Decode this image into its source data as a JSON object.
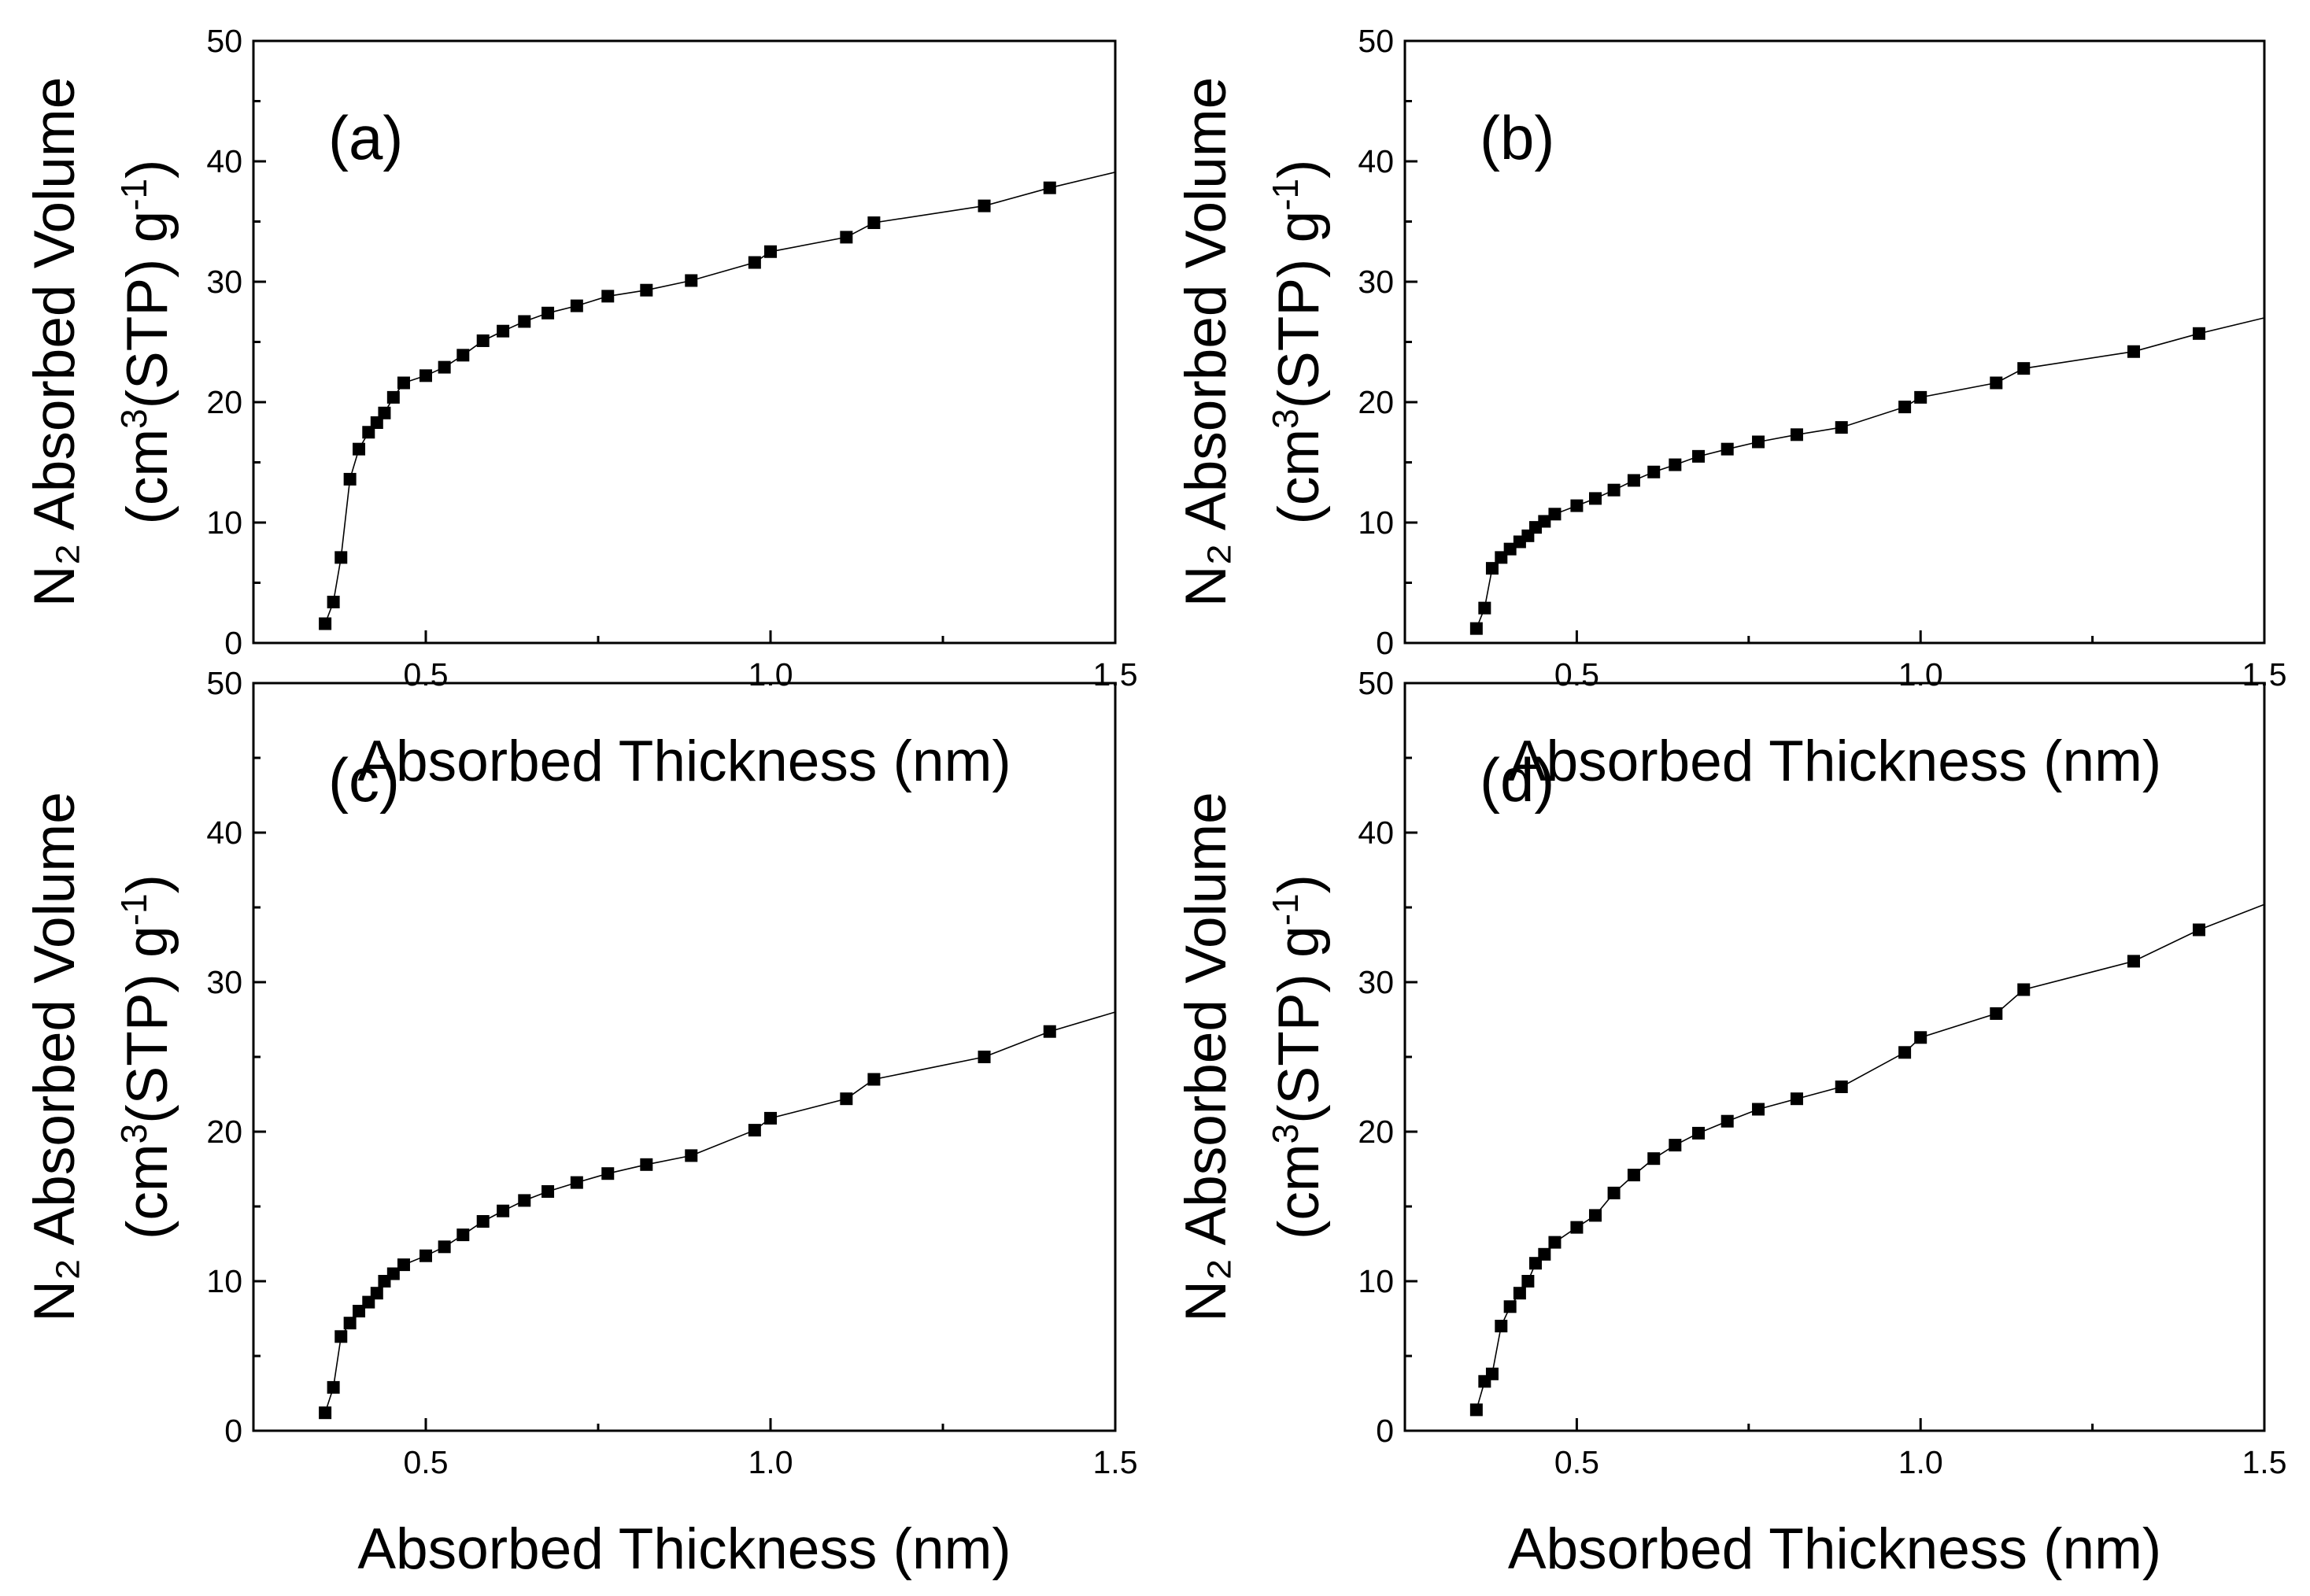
{
  "figure": {
    "x_axis_title": "Absorbed Thickness (nm)",
    "y_axis_title_line1": "N₂ Absorbed Volume",
    "y_axis_title_line2_prefix": "(cm",
    "y_axis_title_line2_sup1": "3",
    "y_axis_title_line2_middle": "(STP) g",
    "y_axis_title_line2_sup2": "-1",
    "y_axis_title_line2_suffix": ")"
  },
  "chart_data": [
    {
      "type": "line",
      "panel_label": "(a)",
      "title": "",
      "xlabel": "Absorbed Thickness (nm)",
      "ylabel": "N2 Absorbed Volume (cm3(STP) g-1)",
      "xlim": [
        0.25,
        1.5
      ],
      "ylim": [
        0,
        50
      ],
      "x_ticks": [
        0.5,
        1.0,
        1.5
      ],
      "x_tick_labels": [
        "0.5",
        "1.0",
        "1.5"
      ],
      "y_ticks": [
        0,
        10,
        20,
        30,
        40,
        50
      ],
      "y_tick_labels": [
        "0",
        "10",
        "20",
        "30",
        "40",
        "50"
      ],
      "grid": false,
      "marker": "square",
      "series": [
        {
          "name": "(a)",
          "x": [
            0.354,
            0.366,
            0.377,
            0.39,
            0.403,
            0.417,
            0.429,
            0.44,
            0.453,
            0.468,
            0.5,
            0.527,
            0.554,
            0.583,
            0.612,
            0.643,
            0.677,
            0.719,
            0.764,
            0.82,
            0.885,
            0.977,
            1.0,
            1.11,
            1.15,
            1.31,
            1.405,
            1.5
          ],
          "y": [
            1.6,
            3.4,
            7.1,
            13.6,
            16.1,
            17.5,
            18.3,
            19.1,
            20.4,
            21.6,
            22.2,
            22.9,
            23.9,
            25.1,
            25.9,
            26.7,
            27.4,
            28.0,
            28.8,
            29.3,
            30.1,
            31.6,
            32.5,
            33.7,
            34.9,
            36.3,
            37.8,
            39.1
          ],
          "markers_shown": 27
        }
      ]
    },
    {
      "type": "line",
      "panel_label": "(b)",
      "title": "",
      "xlabel": "Absorbed Thickness (nm)",
      "ylabel": "N2 Absorbed Volume (cm3(STP) g-1)",
      "xlim": [
        0.25,
        1.5
      ],
      "ylim": [
        0,
        50
      ],
      "x_ticks": [
        0.5,
        1.0,
        1.5
      ],
      "x_tick_labels": [
        "0.5",
        "1.0",
        "1.5"
      ],
      "y_ticks": [
        0,
        10,
        20,
        30,
        40,
        50
      ],
      "y_tick_labels": [
        "0",
        "10",
        "20",
        "30",
        "40",
        "50"
      ],
      "grid": false,
      "marker": "square",
      "series": [
        {
          "name": "(b)",
          "x": [
            0.354,
            0.366,
            0.377,
            0.39,
            0.403,
            0.417,
            0.429,
            0.44,
            0.453,
            0.468,
            0.5,
            0.527,
            0.554,
            0.583,
            0.612,
            0.643,
            0.677,
            0.719,
            0.764,
            0.82,
            0.885,
            0.977,
            1.0,
            1.11,
            1.15,
            1.31,
            1.405,
            1.5
          ],
          "y": [
            1.2,
            2.9,
            6.2,
            7.1,
            7.8,
            8.4,
            8.9,
            9.6,
            10.1,
            10.7,
            11.4,
            12.0,
            12.7,
            13.5,
            14.2,
            14.8,
            15.5,
            16.1,
            16.7,
            17.3,
            17.9,
            19.6,
            20.4,
            21.6,
            22.8,
            24.2,
            25.7,
            27.0
          ],
          "markers_shown": 27
        }
      ]
    },
    {
      "type": "line",
      "panel_label": "(c)",
      "title": "",
      "xlabel": "Absorbed Thickness (nm)",
      "ylabel": "N2 Absorbed Volume (cm3(STP) g-1)",
      "xlim": [
        0.25,
        1.5
      ],
      "ylim": [
        0,
        50
      ],
      "x_ticks": [
        0.5,
        1.0,
        1.5
      ],
      "x_tick_labels": [
        "0.5",
        "1.0",
        "1.5"
      ],
      "y_ticks": [
        0,
        10,
        20,
        30,
        40,
        50
      ],
      "y_tick_labels": [
        "0",
        "10",
        "20",
        "30",
        "40",
        "50"
      ],
      "grid": false,
      "marker": "square",
      "series": [
        {
          "name": "(c)",
          "x": [
            0.354,
            0.366,
            0.377,
            0.39,
            0.403,
            0.417,
            0.429,
            0.44,
            0.453,
            0.468,
            0.5,
            0.527,
            0.554,
            0.583,
            0.612,
            0.643,
            0.677,
            0.719,
            0.764,
            0.82,
            0.885,
            0.977,
            1.0,
            1.11,
            1.15,
            1.31,
            1.405,
            1.5
          ],
          "y": [
            1.2,
            2.9,
            6.3,
            7.2,
            8.0,
            8.6,
            9.2,
            10.0,
            10.5,
            11.1,
            11.7,
            12.3,
            13.1,
            14.0,
            14.7,
            15.4,
            16.0,
            16.6,
            17.2,
            17.8,
            18.4,
            20.1,
            20.9,
            22.2,
            23.5,
            25.0,
            26.7,
            28.0
          ],
          "markers_shown": 27
        }
      ]
    },
    {
      "type": "line",
      "panel_label": "(d)",
      "title": "",
      "xlabel": "Absorbed Thickness (nm)",
      "ylabel": "N2 Absorbed Volume (cm3(STP) g-1)",
      "xlim": [
        0.25,
        1.5
      ],
      "ylim": [
        0,
        50
      ],
      "x_ticks": [
        0.5,
        1.0,
        1.5
      ],
      "x_tick_labels": [
        "0.5",
        "1.0",
        "1.5"
      ],
      "y_ticks": [
        0,
        10,
        20,
        30,
        40,
        50
      ],
      "y_tick_labels": [
        "0",
        "10",
        "20",
        "30",
        "40",
        "50"
      ],
      "grid": false,
      "marker": "square",
      "series": [
        {
          "name": "(d)",
          "x": [
            0.354,
            0.366,
            0.377,
            0.39,
            0.403,
            0.417,
            0.429,
            0.44,
            0.453,
            0.468,
            0.5,
            0.527,
            0.554,
            0.583,
            0.612,
            0.643,
            0.677,
            0.719,
            0.764,
            0.82,
            0.885,
            0.977,
            1.0,
            1.11,
            1.15,
            1.31,
            1.405,
            1.5
          ],
          "y": [
            1.4,
            3.3,
            3.8,
            7.0,
            8.3,
            9.2,
            10.0,
            11.2,
            11.8,
            12.6,
            13.6,
            14.4,
            15.9,
            17.1,
            18.2,
            19.1,
            19.9,
            20.7,
            21.5,
            22.2,
            23.0,
            25.3,
            26.3,
            27.9,
            29.5,
            31.4,
            33.5,
            35.2
          ],
          "markers_shown": 27
        }
      ]
    }
  ]
}
